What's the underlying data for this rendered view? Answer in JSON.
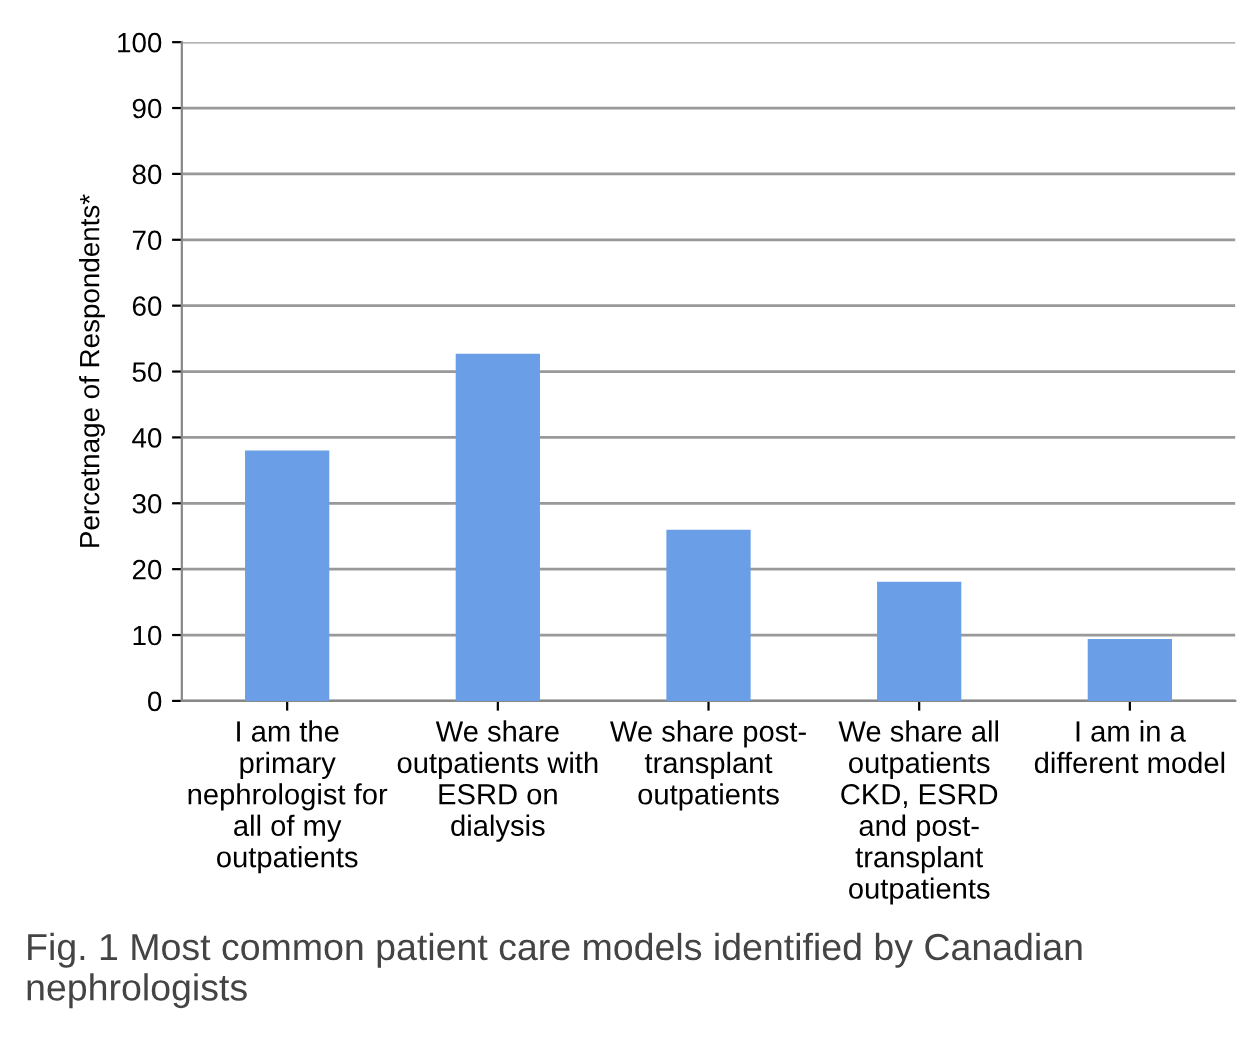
{
  "chart_data": {
    "type": "bar",
    "categories": [
      "I am the\nprimary\nnephrologist for\nall of my\noutpatients",
      "We share\noutpatients with\nESRD on\ndialysis",
      "We share post-\ntransplant\noutpatients",
      "We share all\noutpatients\nCKD, ESRD\nand post-\ntransplant\noutpatients",
      "I am in a\ndifferent model"
    ],
    "values": [
      38.0,
      52.7,
      26.0,
      18.1,
      9.4
    ],
    "color": "#6a9ee6",
    "ylabel": "Percetnage of Respondents*",
    "ylim": [
      0,
      100
    ],
    "yticks": [
      0,
      10,
      20,
      30,
      40,
      50,
      60,
      70,
      80,
      90,
      100
    ],
    "grid": "y",
    "annotations": [
      "Fig. 1 Most common patient care models identified by Canadian nephrologists"
    ]
  }
}
